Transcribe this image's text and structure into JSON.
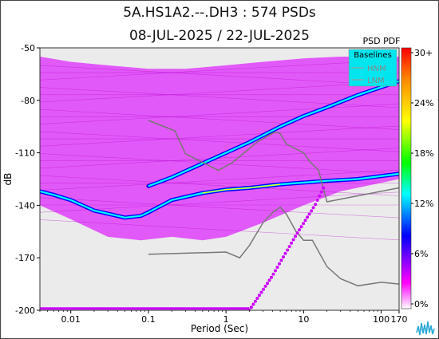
{
  "title_line1": "5A.HS1A2.--.DH3 : 574 PSDs",
  "title_line2": "08-JUL-2025 / 22-JUL-2025",
  "chart_data": {
    "type": "heatmap",
    "xlabel": "Period (Sec)",
    "ylabel": "dB",
    "x_scale": "log",
    "xlim": [
      0.004,
      170
    ],
    "ylim": [
      -200,
      -50
    ],
    "x_ticks": [
      0.01,
      0.1,
      1,
      10,
      100,
      170
    ],
    "x_tick_labels": [
      "0.01",
      "0.1",
      "1",
      "10",
      "100",
      "170"
    ],
    "y_ticks": [
      -50,
      -80,
      -110,
      -140,
      -170,
      -200
    ],
    "y_tick_labels": [
      "-50",
      "-80",
      "-110",
      "-140",
      "-170",
      "-200"
    ],
    "colorbar": {
      "title": "PSD PDF",
      "ticks": [
        30,
        24,
        18,
        12,
        6,
        0
      ],
      "tick_labels": [
        "30+",
        "24%",
        "18%",
        "12%",
        "6%",
        "0%"
      ],
      "colors": [
        "#ff0000",
        "#ff9900",
        "#ffff00",
        "#00ff00",
        "#00ffff",
        "#0000ff",
        "#ff00ff",
        "#ffffff"
      ]
    },
    "legend": {
      "title": "Baselines",
      "position": "top-right",
      "entries": [
        "HNM",
        "LNM"
      ],
      "background": "#00e5ee"
    },
    "density_color": "#e040fb",
    "ridges": [
      {
        "x": [
          0.1,
          0.2,
          0.5,
          1,
          2,
          5,
          10,
          20,
          50,
          170
        ],
        "y": [
          -129,
          -124,
          -116,
          -110,
          -104,
          -95,
          -89,
          -84,
          -77,
          -69
        ]
      },
      {
        "x": [
          0.004,
          0.006,
          0.01,
          0.02,
          0.05,
          0.08,
          0.1,
          0.2,
          0.5,
          1,
          2,
          5,
          10,
          20,
          50,
          170
        ],
        "y": [
          -132,
          -134,
          -137,
          -143,
          -147,
          -146,
          -144,
          -137,
          -133,
          -131,
          -130,
          -128,
          -127,
          -126,
          -125,
          -122
        ]
      }
    ],
    "hnm": {
      "x": [
        0.1,
        0.22,
        0.3,
        0.8,
        1.2,
        2.5,
        4.3,
        5,
        6,
        10,
        12,
        15.6,
        20,
        170
      ],
      "y": [
        -91.5,
        -97.4,
        -110.5,
        -120,
        -115.7,
        -104,
        -98,
        -99,
        -105,
        -110,
        -115,
        -120,
        -138,
        -130
      ]
    },
    "lnm": {
      "x": [
        0.1,
        1,
        1.5,
        2,
        3,
        4,
        5,
        6,
        8,
        10,
        13,
        20,
        30,
        50,
        100,
        170
      ],
      "y": [
        -168,
        -166.7,
        -170,
        -163,
        -150,
        -144,
        -141,
        -145,
        -155,
        -160,
        -160,
        -175,
        -182,
        -186,
        -184,
        -185
      ]
    },
    "dotted_trend": {
      "x": [
        2,
        4,
        8,
        14,
        18
      ],
      "y": [
        -200,
        -180,
        -157,
        -140,
        -130
      ]
    }
  }
}
